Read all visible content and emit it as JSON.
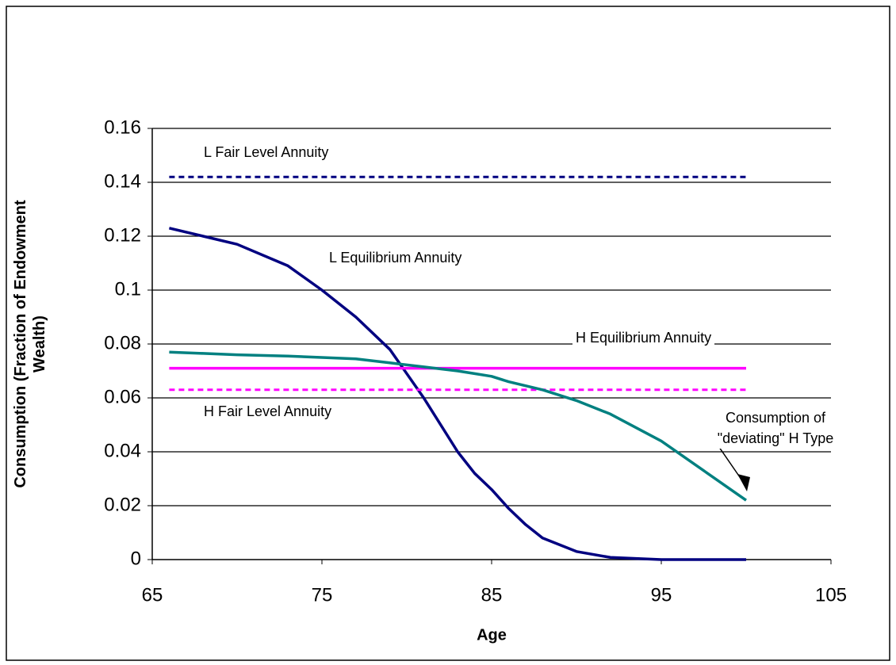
{
  "chart_data": {
    "type": "line",
    "xlabel": "Age",
    "ylabel": "Consumption (Fraction of Endowment Wealth)",
    "x": [
      66,
      68,
      70,
      73,
      75,
      77,
      79,
      81,
      83,
      84,
      85,
      86,
      87,
      88,
      90,
      92,
      95,
      100
    ],
    "series": [
      {
        "name": "L Fair Level Annuity",
        "color": "#000080",
        "dashed": true,
        "values": [
          0.142,
          0.142,
          0.142,
          0.142,
          0.142,
          0.142,
          0.142,
          0.142,
          0.142,
          0.142,
          0.142,
          0.142,
          0.142,
          0.142,
          0.142,
          0.142,
          0.142,
          0.142
        ]
      },
      {
        "name": "L Equilibrium Annuity",
        "color": "#000080",
        "dashed": false,
        "values": [
          0.123,
          0.12,
          0.117,
          0.109,
          0.1,
          0.09,
          0.078,
          0.06,
          0.04,
          0.032,
          0.026,
          0.019,
          0.013,
          0.008,
          0.003,
          0.0008,
          0,
          0
        ]
      },
      {
        "name": "H Equilibrium Annuity",
        "color": "#ff00ff",
        "dashed": false,
        "values": [
          0.071,
          0.071,
          0.071,
          0.071,
          0.071,
          0.071,
          0.071,
          0.071,
          0.071,
          0.071,
          0.071,
          0.071,
          0.071,
          0.071,
          0.071,
          0.071,
          0.071,
          0.071
        ]
      },
      {
        "name": "H Fair Level Annuity",
        "color": "#ff00ff",
        "dashed": true,
        "values": [
          0.063,
          0.063,
          0.063,
          0.063,
          0.063,
          0.063,
          0.063,
          0.063,
          0.063,
          0.063,
          0.063,
          0.063,
          0.063,
          0.063,
          0.063,
          0.063,
          0.063,
          0.063
        ]
      },
      {
        "name": "Consumption of \"deviating\" H Type",
        "color": "#008080",
        "dashed": false,
        "values": [
          0.077,
          0.0765,
          0.076,
          0.0755,
          0.075,
          0.0745,
          0.073,
          0.0715,
          0.07,
          0.069,
          0.068,
          0.066,
          0.0645,
          0.063,
          0.059,
          0.054,
          0.044,
          0.022
        ]
      }
    ],
    "xlim": [
      65,
      105
    ],
    "xticks": [
      65,
      75,
      85,
      95,
      105
    ],
    "ylim": [
      0,
      0.16
    ],
    "yticks": [
      0,
      0.02,
      0.04,
      0.06,
      0.08,
      0.1,
      0.12,
      0.14,
      0.16
    ],
    "grid": true
  }
}
